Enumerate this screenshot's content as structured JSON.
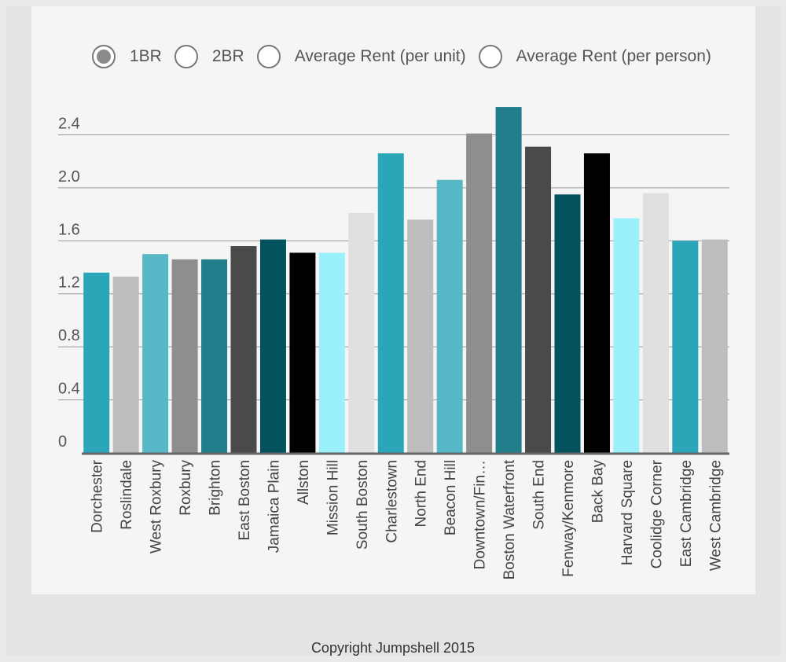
{
  "controls": {
    "options": [
      {
        "label": "1BR",
        "selected": true
      },
      {
        "label": "2BR",
        "selected": false
      },
      {
        "label": "Average Rent (per unit)",
        "selected": false
      },
      {
        "label": "Average Rent (per person)",
        "selected": false
      }
    ]
  },
  "chart_data": {
    "type": "bar",
    "title": "",
    "xlabel": "",
    "ylabel": "",
    "ylim": [
      0,
      2.64
    ],
    "yticks": [
      "0",
      "0.4",
      "0.8",
      "1.2",
      "1.6",
      "2.0",
      "2.4"
    ],
    "categories": [
      "Dorchester",
      "Roslindale",
      "West Roxbury",
      "Roxbury",
      "Brighton",
      "East Boston",
      "Jamaica Plain",
      "Allston",
      "Mission Hill",
      "South Boston",
      "Charlestown",
      "North End",
      "Beacon Hill",
      "Downtown/Fin…",
      "Boston Waterfront",
      "South End",
      "Fenway/Kenmore",
      "Back Bay",
      "Harvard Square",
      "Coolidge Corner",
      "East Cambridge",
      "West Cambridge"
    ],
    "values": [
      1.36,
      1.33,
      1.5,
      1.46,
      1.46,
      1.56,
      1.61,
      1.51,
      1.51,
      1.81,
      2.26,
      1.76,
      2.06,
      2.41,
      2.61,
      2.31,
      1.95,
      2.26,
      1.77,
      1.96,
      1.6,
      1.61
    ],
    "colors": [
      "#2ba6b8",
      "#bdbdbd",
      "#56b8c6",
      "#8e8e8e",
      "#217e8a",
      "#4a4a4a",
      "#02535e",
      "#000000",
      "#9af1fb",
      "#e0e0e0",
      "#2ba6b8",
      "#bdbdbd",
      "#56b8c6",
      "#8e8e8e",
      "#217e8a",
      "#4a4a4a",
      "#02535e",
      "#000000",
      "#9af1fb",
      "#e0e0e0",
      "#2ba6b8",
      "#bdbdbd"
    ]
  },
  "footer": {
    "copyright": "Copyright Jumpshell 2015"
  }
}
